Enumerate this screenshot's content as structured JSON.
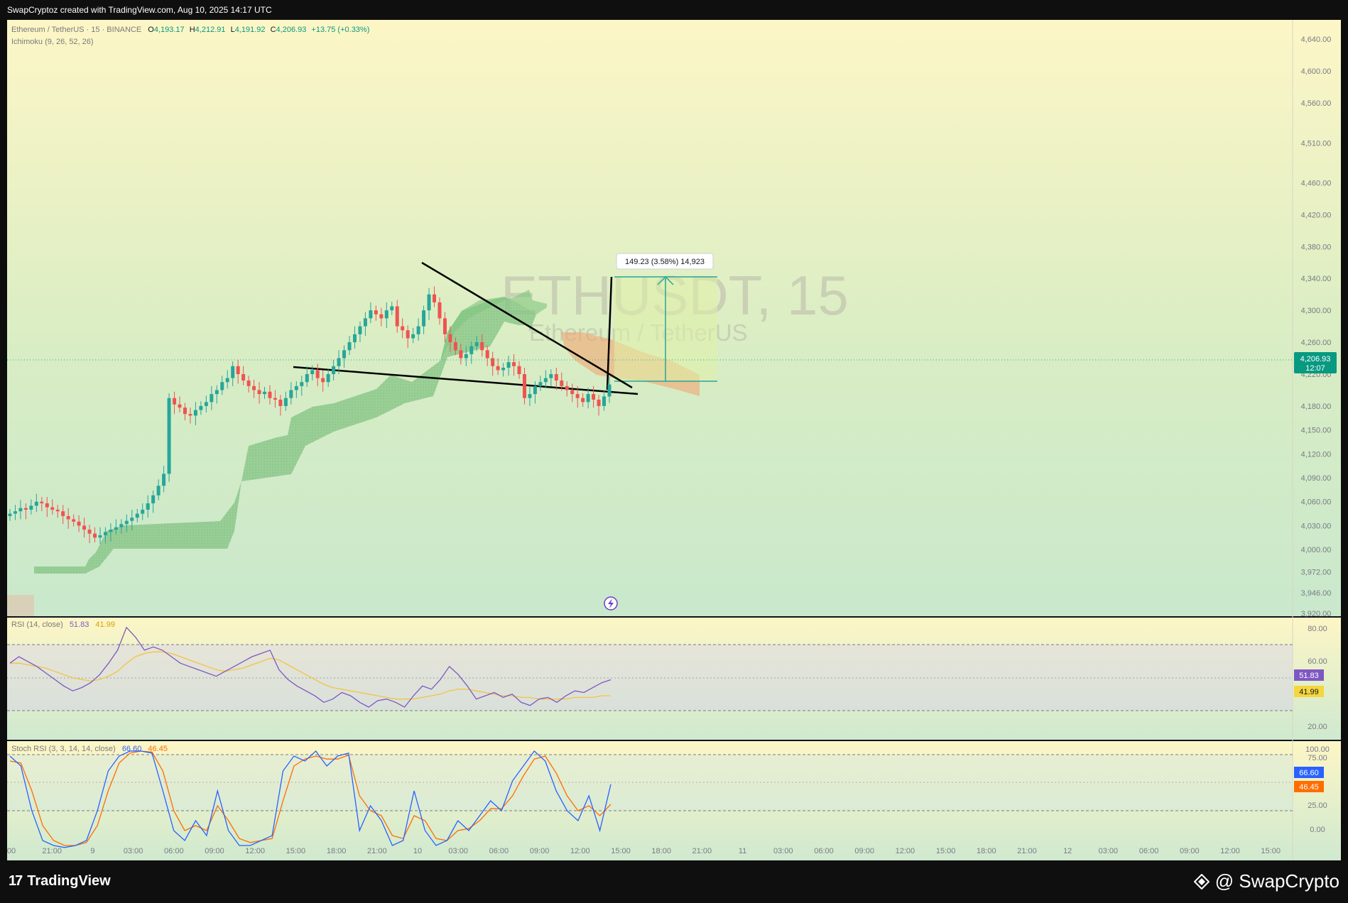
{
  "header": {
    "credit": "SwapCryptoz created with TradingView.com, Aug 10, 2025 14:17 UTC"
  },
  "legend": {
    "symbol": "Ethereum / TetherUS · 15 · BINANCE",
    "o_label": "O",
    "o": "4,193.17",
    "h_label": "H",
    "h": "4,212.91",
    "l_label": "L",
    "l": "4,191.92",
    "c_label": "C",
    "c": "4,206.93",
    "change": "+13.75 (+0.33%)",
    "indicator": "Ichimoku (9, 26, 52, 26)"
  },
  "watermark": {
    "ticker": "ETHUSDT, 15",
    "name": "Ethereum / TetherUS"
  },
  "measure": {
    "label": "149.23 (3.58%) 14,923"
  },
  "price_tag": {
    "price": "4,206.93",
    "countdown": "12:07"
  },
  "rsi": {
    "label": "RSI (14, close)",
    "v1": "51.83",
    "v2": "41.99",
    "ticks": [
      "80.00",
      "60.00",
      "20.00"
    ]
  },
  "stoch": {
    "label": "Stoch RSI (3, 3, 14, 14, close)",
    "k": "66.60",
    "d": "46.45",
    "ticks": [
      "100.00",
      "75.00",
      "25.00",
      "0.00"
    ]
  },
  "footer": {
    "logo": "TradingView",
    "brand": "@ SwapCrypto"
  },
  "colors": {
    "up": "#26a69a",
    "down": "#ef5350",
    "rsi": "#7e57c2",
    "rsi_ma": "#f5c242",
    "stoch_k": "#2962ff",
    "stoch_d": "#ff6d00",
    "cloud_bull": "#7fc47f",
    "cloud_bear": "#f2a06b"
  },
  "chart_data": [
    {
      "type": "candlestick",
      "title": "Ethereum / TetherUS · 15 · BINANCE",
      "ylim": [
        3920,
        4650
      ],
      "y_ticks": [
        "4,640.00",
        "4,600.00",
        "4,560.00",
        "4,510.00",
        "4,460.00",
        "4,420.00",
        "4,380.00",
        "4,340.00",
        "4,300.00",
        "4,260.00",
        "4,220.00",
        "4,180.00",
        "4,150.00",
        "4,120.00",
        "4,090.00",
        "4,060.00",
        "4,030.00",
        "4,000.00",
        "3,972.00",
        "3,946.00",
        "3,920.00"
      ],
      "x_ticks": [
        "00",
        "21:00",
        "9",
        "03:00",
        "06:00",
        "09:00",
        "12:00",
        "15:00",
        "18:00",
        "21:00",
        "10",
        "03:00",
        "06:00",
        "09:00",
        "12:00",
        "15:00",
        "18:00",
        "21:00",
        "11",
        "03:00",
        "06:00",
        "09:00",
        "12:00",
        "15:00",
        "18:00",
        "21:00",
        "12",
        "03:00",
        "06:00",
        "09:00",
        "12:00",
        "15:00"
      ],
      "close_series": [
        4045,
        4048,
        4052,
        4050,
        4055,
        4060,
        4058,
        4053,
        4050,
        4048,
        4042,
        4038,
        4035,
        4030,
        4025,
        4020,
        4015,
        4018,
        4022,
        4025,
        4028,
        4032,
        4036,
        4040,
        4045,
        4050,
        4058,
        4068,
        4080,
        4095,
        4190,
        4182,
        4178,
        4170,
        4168,
        4175,
        4180,
        4185,
        4195,
        4200,
        4210,
        4215,
        4230,
        4220,
        4212,
        4205,
        4200,
        4195,
        4198,
        4190,
        4188,
        4180,
        4190,
        4200,
        4205,
        4210,
        4220,
        4225,
        4215,
        4210,
        4220,
        4230,
        4240,
        4250,
        4260,
        4270,
        4280,
        4290,
        4300,
        4295,
        4290,
        4300,
        4305,
        4280,
        4275,
        4265,
        4270,
        4280,
        4300,
        4320,
        4310,
        4290,
        4270,
        4260,
        4250,
        4240,
        4245,
        4255,
        4260,
        4250,
        4240,
        4230,
        4225,
        4228,
        4235,
        4230,
        4220,
        4190,
        4195,
        4205,
        4210,
        4215,
        4220,
        4212,
        4205,
        4200,
        4195,
        4190,
        4185,
        4195,
        4188,
        4180,
        4192,
        4207
      ],
      "levels": {
        "last": 4206.93,
        "open": 4193.17,
        "high": 4212.91,
        "low": 4191.92
      },
      "annotations": [
        "falling wedge trendlines",
        "long position measure: 149.23 (3.58%) 14,923"
      ]
    },
    {
      "type": "line",
      "title": "RSI (14, close)",
      "ylim": [
        15,
        90
      ],
      "series": [
        {
          "name": "RSI",
          "values": [
            62,
            66,
            63,
            60,
            56,
            52,
            48,
            45,
            47,
            50,
            55,
            62,
            70,
            84,
            78,
            70,
            72,
            70,
            66,
            62,
            60,
            58,
            56,
            54,
            57,
            60,
            63,
            66,
            68,
            70,
            58,
            52,
            48,
            45,
            42,
            38,
            40,
            44,
            42,
            38,
            35,
            39,
            40,
            38,
            35,
            42,
            48,
            46,
            52,
            60,
            55,
            48,
            40,
            42,
            44,
            41,
            43,
            38,
            36,
            40,
            41,
            38,
            42,
            45,
            44,
            47,
            50,
            51.83
          ]
        },
        {
          "name": "MA",
          "values": [
            62,
            62,
            61,
            60,
            59,
            57,
            55,
            53,
            52,
            51,
            52,
            54,
            57,
            62,
            66,
            68,
            69,
            69,
            68,
            66,
            64,
            62,
            60,
            58,
            57,
            58,
            59,
            61,
            63,
            65,
            64,
            61,
            58,
            55,
            52,
            49,
            47,
            46,
            45,
            44,
            43,
            42,
            41,
            40,
            40,
            40,
            41,
            42,
            43,
            45,
            46,
            46,
            45,
            44,
            43,
            42,
            42,
            41,
            41,
            40,
            40,
            40,
            40,
            41,
            41,
            41,
            42,
            41.99
          ]
        }
      ]
    },
    {
      "type": "line",
      "title": "Stoch RSI (3, 3, 14, 14, close)",
      "ylim": [
        -10,
        110
      ],
      "series": [
        {
          "name": "K",
          "values": [
            95,
            85,
            40,
            10,
            5,
            3,
            5,
            10,
            40,
            80,
            95,
            100,
            100,
            98,
            60,
            20,
            10,
            30,
            15,
            60,
            20,
            5,
            5,
            10,
            15,
            80,
            95,
            90,
            100,
            85,
            95,
            98,
            20,
            45,
            30,
            5,
            10,
            60,
            20,
            5,
            10,
            30,
            20,
            35,
            50,
            40,
            70,
            85,
            100,
            90,
            60,
            40,
            30,
            55,
            20,
            66.6
          ]
        },
        {
          "name": "D",
          "values": [
            90,
            88,
            60,
            25,
            10,
            5,
            5,
            8,
            25,
            60,
            88,
            98,
            100,
            99,
            80,
            40,
            20,
            25,
            20,
            45,
            30,
            12,
            8,
            10,
            12,
            50,
            85,
            92,
            95,
            92,
            92,
            96,
            55,
            40,
            35,
            15,
            12,
            35,
            30,
            12,
            10,
            20,
            22,
            30,
            42,
            42,
            55,
            75,
            92,
            95,
            78,
            55,
            40,
            45,
            35,
            46.45
          ]
        }
      ]
    }
  ]
}
